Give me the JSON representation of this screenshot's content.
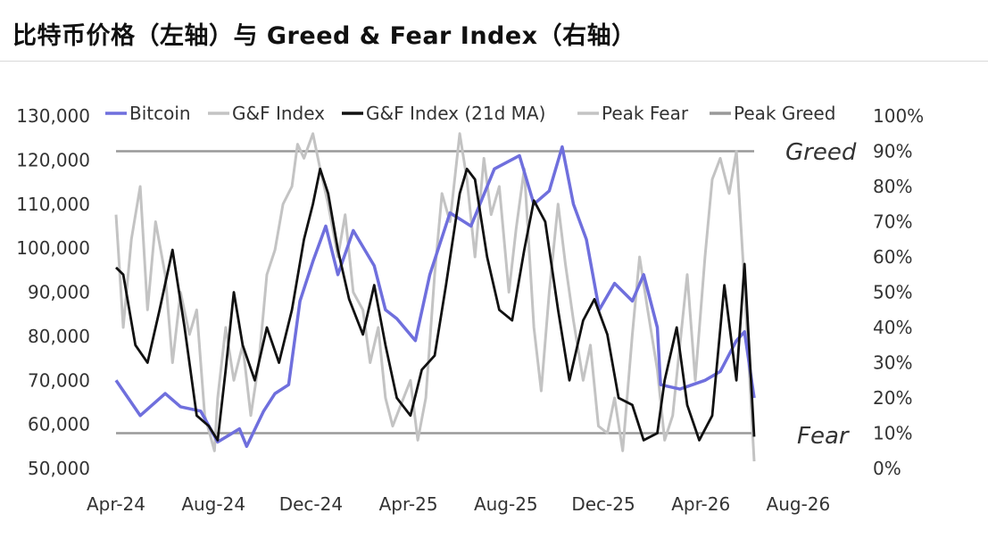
{
  "title": "比特币价格（左轴）与 Greed & Fear Index（右轴）",
  "chart_data": {
    "type": "line",
    "title": "比特币价格（左轴）与 Greed & Fear Index（右轴）",
    "colors": {
      "bitcoin": "#6f6fdd",
      "gf_index": "#c3c3c3",
      "gf_ma": "#111111",
      "peak": "#999999"
    },
    "legend": {
      "position": "top",
      "entries": [
        "Bitcoin",
        "G&F Index",
        "G&F Index (21d MA)",
        "Peak Fear",
        "Peak Greed"
      ]
    },
    "x_tick_labels": [
      "Apr-24",
      "Aug-24",
      "Dec-24",
      "Apr-25",
      "Aug-25",
      "Dec-25",
      "Apr-26",
      "Aug-26"
    ],
    "y_left": {
      "ylim": [
        50000,
        130000
      ],
      "tick_labels": [
        "50,000",
        "60,000",
        "70,000",
        "80,000",
        "90,000",
        "100,000",
        "110,000",
        "120,000",
        "130,000"
      ]
    },
    "y_right": {
      "ylim": [
        0,
        100
      ],
      "tick_labels": [
        "0%",
        "10%",
        "20%",
        "30%",
        "40%",
        "50%",
        "60%",
        "70%",
        "80%",
        "90%",
        "100%"
      ]
    },
    "annotations": {
      "greed": "Greed",
      "fear": "Fear"
    },
    "series": [
      {
        "name": "Bitcoin",
        "axis": "left",
        "x": [
          "2024-04-01",
          "2024-05-01",
          "2024-06-01",
          "2024-06-20",
          "2024-07-15",
          "2024-08-05",
          "2024-09-01",
          "2024-09-10",
          "2024-10-01",
          "2024-10-15",
          "2024-11-01",
          "2024-11-15",
          "2024-12-01",
          "2024-12-17",
          "2025-01-01",
          "2025-01-20",
          "2025-02-15",
          "2025-03-01",
          "2025-03-15",
          "2025-04-07",
          "2025-04-25",
          "2025-05-20",
          "2025-06-15",
          "2025-07-14",
          "2025-08-14",
          "2025-09-01",
          "2025-09-20",
          "2025-10-06",
          "2025-10-20",
          "2025-11-05",
          "2025-11-21",
          "2025-12-10",
          "2026-01-01",
          "2026-01-15",
          "2026-02-01",
          "2026-02-05",
          "2026-03-01",
          "2026-04-01",
          "2026-04-20",
          "2026-05-10",
          "2026-05-20",
          "2026-06-01"
        ],
        "values": [
          70000,
          62000,
          67000,
          64000,
          63000,
          56000,
          59000,
          55000,
          63000,
          67000,
          69000,
          88000,
          97000,
          105000,
          94000,
          104000,
          96000,
          86000,
          84000,
          79000,
          94000,
          108000,
          105000,
          118000,
          121000,
          110000,
          113000,
          123000,
          110000,
          102000,
          86000,
          92000,
          88000,
          94000,
          82000,
          69000,
          68000,
          70000,
          72000,
          79000,
          81000,
          66000
        ]
      },
      {
        "name": "G&F Index",
        "axis": "right",
        "x": [
          "2024-04-01",
          "2024-04-10",
          "2024-04-20",
          "2024-05-01",
          "2024-05-10",
          "2024-05-20",
          "2024-06-01",
          "2024-06-10",
          "2024-06-20",
          "2024-07-01",
          "2024-07-10",
          "2024-07-20",
          "2024-08-01",
          "2024-08-05",
          "2024-08-15",
          "2024-08-25",
          "2024-09-05",
          "2024-09-15",
          "2024-09-25",
          "2024-10-05",
          "2024-10-15",
          "2024-10-25",
          "2024-11-05",
          "2024-11-12",
          "2024-11-20",
          "2024-12-01",
          "2024-12-10",
          "2024-12-20",
          "2025-01-01",
          "2025-01-10",
          "2025-01-20",
          "2025-02-01",
          "2025-02-10",
          "2025-02-20",
          "2025-03-01",
          "2025-03-10",
          "2025-03-20",
          "2025-04-01",
          "2025-04-10",
          "2025-04-20",
          "2025-05-01",
          "2025-05-10",
          "2025-05-20",
          "2025-06-01",
          "2025-06-10",
          "2025-06-20",
          "2025-07-01",
          "2025-07-10",
          "2025-07-20",
          "2025-08-01",
          "2025-08-10",
          "2025-08-20",
          "2025-09-01",
          "2025-09-10",
          "2025-09-20",
          "2025-10-01",
          "2025-10-10",
          "2025-10-20",
          "2025-11-01",
          "2025-11-10",
          "2025-11-20",
          "2025-12-01",
          "2025-12-10",
          "2025-12-20",
          "2026-01-01",
          "2026-01-10",
          "2026-01-20",
          "2026-02-01",
          "2026-02-10",
          "2026-02-20",
          "2026-03-01",
          "2026-03-10",
          "2026-03-20",
          "2026-04-01",
          "2026-04-10",
          "2026-04-20",
          "2026-05-01",
          "2026-05-10",
          "2026-05-20",
          "2026-06-01"
        ],
        "values": [
          72,
          40,
          65,
          80,
          45,
          70,
          55,
          30,
          50,
          38,
          45,
          15,
          5,
          20,
          40,
          25,
          35,
          15,
          30,
          55,
          62,
          75,
          80,
          92,
          88,
          95,
          85,
          75,
          60,
          72,
          50,
          45,
          30,
          40,
          20,
          12,
          18,
          25,
          8,
          20,
          55,
          78,
          70,
          95,
          82,
          60,
          88,
          72,
          80,
          50,
          68,
          85,
          40,
          22,
          50,
          75,
          58,
          42,
          25,
          35,
          12,
          10,
          20,
          5,
          38,
          60,
          45,
          28,
          8,
          15,
          35,
          55,
          25,
          60,
          82,
          88,
          78,
          90,
          52,
          2
        ]
      },
      {
        "name": "G&F Index (21d MA)",
        "axis": "right",
        "x": [
          "2024-04-01",
          "2024-04-10",
          "2024-04-25",
          "2024-05-10",
          "2024-05-25",
          "2024-06-10",
          "2024-06-25",
          "2024-07-10",
          "2024-07-25",
          "2024-08-05",
          "2024-08-15",
          "2024-08-25",
          "2024-09-05",
          "2024-09-20",
          "2024-10-05",
          "2024-10-20",
          "2024-11-05",
          "2024-11-20",
          "2024-12-01",
          "2024-12-10",
          "2024-12-20",
          "2025-01-01",
          "2025-01-15",
          "2025-02-01",
          "2025-02-15",
          "2025-03-01",
          "2025-03-15",
          "2025-04-01",
          "2025-04-15",
          "2025-05-01",
          "2025-05-15",
          "2025-06-01",
          "2025-06-10",
          "2025-06-20",
          "2025-07-05",
          "2025-07-20",
          "2025-08-05",
          "2025-08-20",
          "2025-09-01",
          "2025-09-15",
          "2025-10-01",
          "2025-10-15",
          "2025-11-01",
          "2025-11-15",
          "2025-12-01",
          "2025-12-15",
          "2026-01-01",
          "2026-01-15",
          "2026-02-01",
          "2026-02-10",
          "2026-02-25",
          "2026-03-10",
          "2026-03-25",
          "2026-04-10",
          "2026-04-25",
          "2026-05-10",
          "2026-05-20",
          "2026-06-01"
        ],
        "values": [
          57,
          55,
          35,
          30,
          45,
          62,
          40,
          15,
          12,
          8,
          28,
          50,
          35,
          25,
          40,
          30,
          45,
          65,
          75,
          85,
          78,
          62,
          48,
          38,
          52,
          35,
          20,
          15,
          28,
          32,
          52,
          78,
          85,
          82,
          60,
          45,
          42,
          62,
          76,
          70,
          45,
          25,
          42,
          48,
          38,
          20,
          18,
          8,
          10,
          25,
          40,
          18,
          8,
          15,
          52,
          25,
          58,
          9
        ]
      },
      {
        "name": "Peak Fear",
        "axis": "right",
        "values": [
          10
        ]
      },
      {
        "name": "Peak Greed",
        "axis": "right",
        "values": [
          90
        ]
      }
    ]
  }
}
